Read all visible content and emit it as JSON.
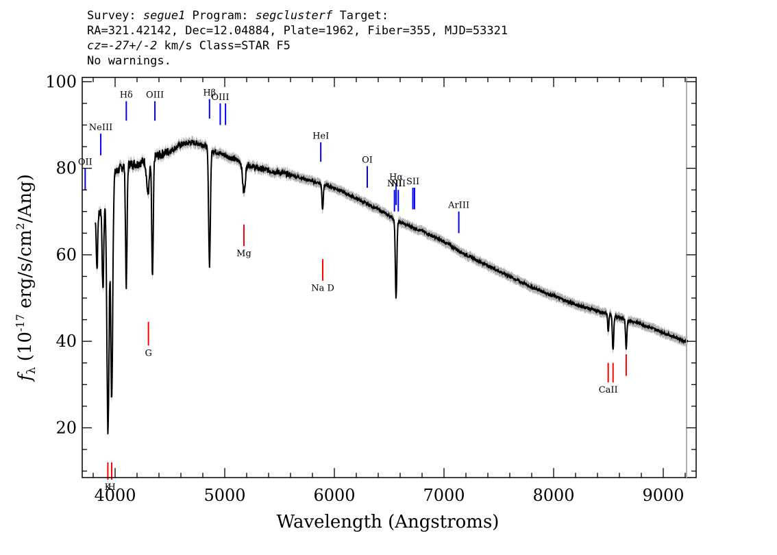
{
  "header": {
    "line1_prefix": "Survey: ",
    "survey": "segue1",
    "line1_mid": " Program: ",
    "program": "segclusterf",
    "line1_suffix": " Target:",
    "line2": "RA=321.42142, Dec=12.04884, Plate=1962, Fiber=355, MJD=53321",
    "line3_cz": "cz=-27+/-2",
    "line3_rest": " km/s Class=STAR F5",
    "line4": "No warnings."
  },
  "chart_data": {
    "type": "line",
    "xlabel": "Wavelength (Angstroms)",
    "ylabel_fn": "f",
    "ylabel_sub": "λ",
    "ylabel_rest1": " (10",
    "ylabel_exp": "-17",
    "ylabel_rest2": " erg/s/cm",
    "ylabel_exp2": "2",
    "ylabel_rest3": "/Ang)",
    "xlim": [
      3700,
      9300
    ],
    "ylim": [
      8.5,
      101
    ],
    "x_ticks": [
      4000,
      5000,
      6000,
      7000,
      8000,
      9000
    ],
    "x_tick_labels": [
      "4000",
      "5000",
      "6000",
      "7000",
      "8000",
      "9000"
    ],
    "y_ticks": [
      20,
      40,
      60,
      80,
      100
    ],
    "y_tick_labels": [
      "20",
      "40",
      "60",
      "80",
      "100"
    ],
    "colors": {
      "spectrum": "#000000",
      "error": "#aaaaaa",
      "emission": "#0000ff",
      "absorption": "#ff0000"
    },
    "continuum": [
      [
        3820,
        68
      ],
      [
        3900,
        72
      ],
      [
        3950,
        75
      ],
      [
        4000,
        79
      ],
      [
        4100,
        81
      ],
      [
        4200,
        81
      ],
      [
        4300,
        82
      ],
      [
        4400,
        83
      ],
      [
        4500,
        84
      ],
      [
        4600,
        85.5
      ],
      [
        4700,
        86
      ],
      [
        4800,
        85.5
      ],
      [
        4900,
        84
      ],
      [
        5000,
        83
      ],
      [
        5100,
        82
      ],
      [
        5200,
        81
      ],
      [
        5300,
        80
      ],
      [
        5400,
        79.5
      ],
      [
        5500,
        79
      ],
      [
        5600,
        78.5
      ],
      [
        5800,
        77
      ],
      [
        6000,
        75.5
      ],
      [
        6200,
        73
      ],
      [
        6400,
        70.5
      ],
      [
        6600,
        67.5
      ],
      [
        6800,
        65.5
      ],
      [
        7000,
        63
      ],
      [
        7200,
        60
      ],
      [
        7400,
        57.5
      ],
      [
        7600,
        55
      ],
      [
        7800,
        52.5
      ],
      [
        8000,
        50.5
      ],
      [
        8200,
        48.5
      ],
      [
        8400,
        47
      ],
      [
        8600,
        45.5
      ],
      [
        8800,
        44
      ],
      [
        9000,
        42
      ],
      [
        9200,
        40
      ]
    ],
    "absorption_features": [
      {
        "name": "H-epsilon-K",
        "x": 3935,
        "depth": 55,
        "width": 10
      },
      {
        "name": "H",
        "x": 3969,
        "depth": 50,
        "width": 9
      },
      {
        "name": "H8",
        "x": 3889,
        "depth": 20,
        "width": 7
      },
      {
        "name": "H9",
        "x": 3835,
        "depth": 12,
        "width": 6
      },
      {
        "name": "H-delta",
        "x": 4102,
        "depth": 28,
        "width": 7
      },
      {
        "name": "G-band",
        "x": 4300,
        "depth": 8,
        "width": 12
      },
      {
        "name": "H-gamma",
        "x": 4341,
        "depth": 28,
        "width": 7
      },
      {
        "name": "H-beta",
        "x": 4861,
        "depth": 27,
        "width": 8
      },
      {
        "name": "Mg",
        "x": 5175,
        "depth": 7,
        "width": 12
      },
      {
        "name": "Na D",
        "x": 5893,
        "depth": 6,
        "width": 6
      },
      {
        "name": "H-alpha",
        "x": 6563,
        "depth": 18,
        "width": 7
      },
      {
        "name": "CaII-1",
        "x": 8498,
        "depth": 4,
        "width": 5
      },
      {
        "name": "CaII-2",
        "x": 8542,
        "depth": 8,
        "width": 6
      },
      {
        "name": "CaII-3",
        "x": 8662,
        "depth": 7,
        "width": 6
      }
    ],
    "emission_lines": [
      {
        "label": "NeIII",
        "x": 3869,
        "y0": 83,
        "y1": 88
      },
      {
        "label": "Hδ",
        "x": 4102,
        "y0": 91,
        "y1": 95.5
      },
      {
        "label": "OIII",
        "x": 4363,
        "y0": 91,
        "y1": 95.5
      },
      {
        "label": "Hβ",
        "x": 4861,
        "y0": 91.5,
        "y1": 96
      },
      {
        "label": "OIII",
        "x": 4959,
        "y0": 90,
        "y1": 95
      },
      {
        "label": "",
        "x": 5007,
        "y0": 90,
        "y1": 95
      },
      {
        "label": "HeI",
        "x": 5876,
        "y0": 81.5,
        "y1": 86
      },
      {
        "label": "OI",
        "x": 6300,
        "y0": 75.5,
        "y1": 80.5
      },
      {
        "label": "NII",
        "x": 6548,
        "y0": 70,
        "y1": 75
      },
      {
        "label": "Hα",
        "x": 6563,
        "y0": 71.5,
        "y1": 76.5
      },
      {
        "label": "NII",
        "x": 6583,
        "y0": 70,
        "y1": 75
      },
      {
        "label": "SII",
        "x": 6716,
        "y0": 70.5,
        "y1": 75.5
      },
      {
        "label": "",
        "x": 6731,
        "y0": 70.5,
        "y1": 75.5
      },
      {
        "label": "ArIII",
        "x": 7135,
        "y0": 65,
        "y1": 70
      },
      {
        "label": "OII",
        "x": 3727,
        "y0": 75,
        "y1": 80
      }
    ],
    "absorption_lines": [
      {
        "label": "K",
        "x": 3934,
        "y0": 8,
        "y1": 12
      },
      {
        "label": "H",
        "x": 3969,
        "y0": 8,
        "y1": 12
      },
      {
        "label": "G",
        "x": 4304,
        "y0": 39,
        "y1": 44.5
      },
      {
        "label": "Mg",
        "x": 5175,
        "y0": 62,
        "y1": 67
      },
      {
        "label": "Na D",
        "x": 5894,
        "y0": 54,
        "y1": 59
      },
      {
        "label": "CaII",
        "x": 8498,
        "y0": 30.5,
        "y1": 35
      },
      {
        "label": "",
        "x": 8542,
        "y0": 30.5,
        "y1": 35
      },
      {
        "label": "",
        "x": 8662,
        "y0": 32,
        "y1": 37
      }
    ]
  }
}
